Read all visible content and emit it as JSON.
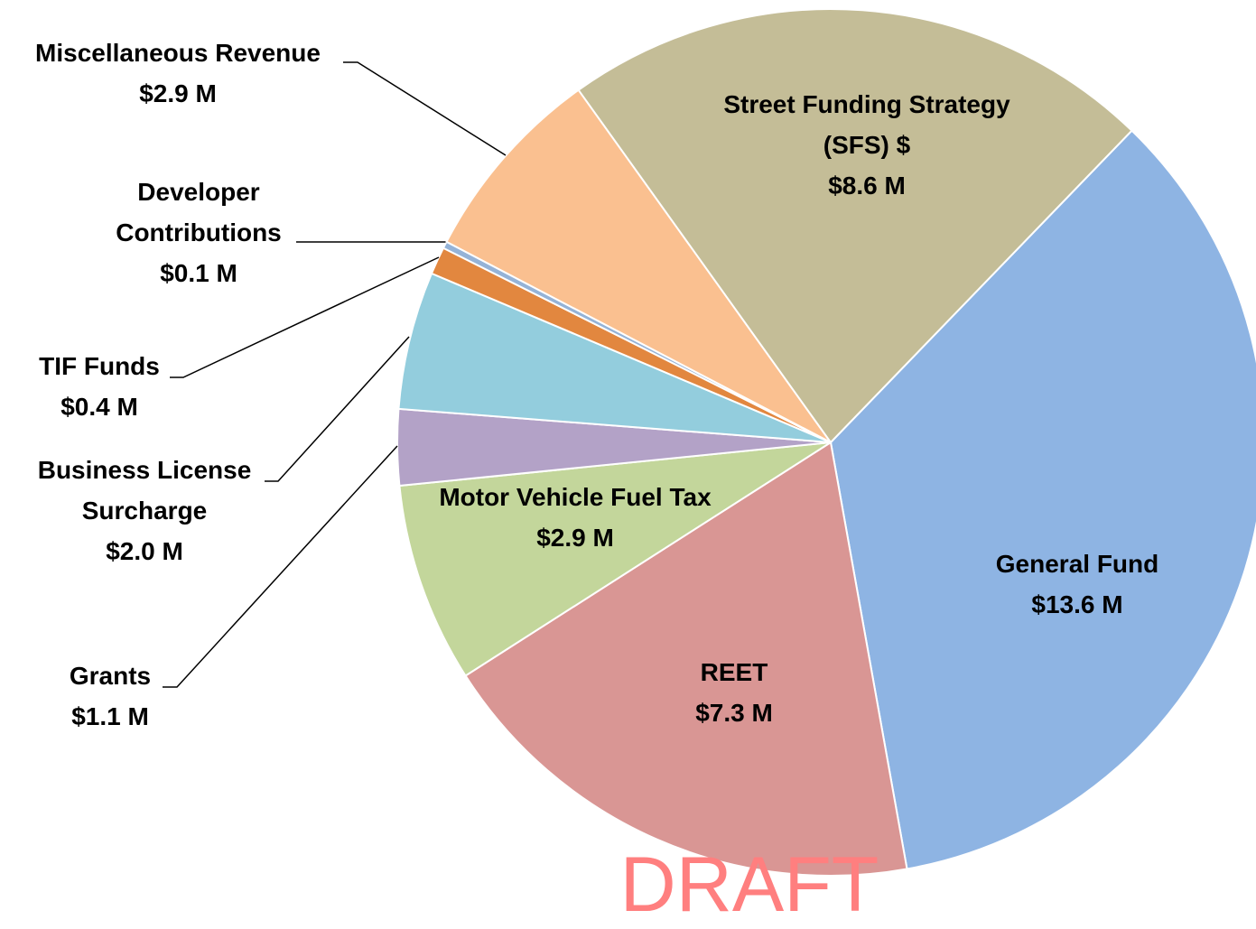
{
  "chart_data": {
    "type": "pie",
    "categories": [
      "General Fund",
      "REET",
      "Motor Vehicle Fuel Tax",
      "Grants",
      "Business License Surcharge",
      "TIF Funds",
      "Developer Contributions",
      "Miscellaneous Revenue",
      "Street Funding Strategy (SFS) $"
    ],
    "values": [
      13.6,
      7.3,
      2.9,
      1.1,
      2.0,
      0.4,
      0.1,
      2.9,
      8.6
    ],
    "value_labels": [
      "$13.6 M",
      "$7.3 M",
      "$2.9 M",
      "$1.1 M",
      "$2.0 M",
      "$0.4 M",
      "$0.1 M",
      "$2.9 M",
      "$8.6 M"
    ],
    "colors": [
      "#8eb4e3",
      "#d99694",
      "#c3d69b",
      "#b3a2c7",
      "#93cddd",
      "#e2873f",
      "#95b3d7",
      "#fac090",
      "#c4bd97"
    ],
    "watermark": "DRAFT"
  }
}
